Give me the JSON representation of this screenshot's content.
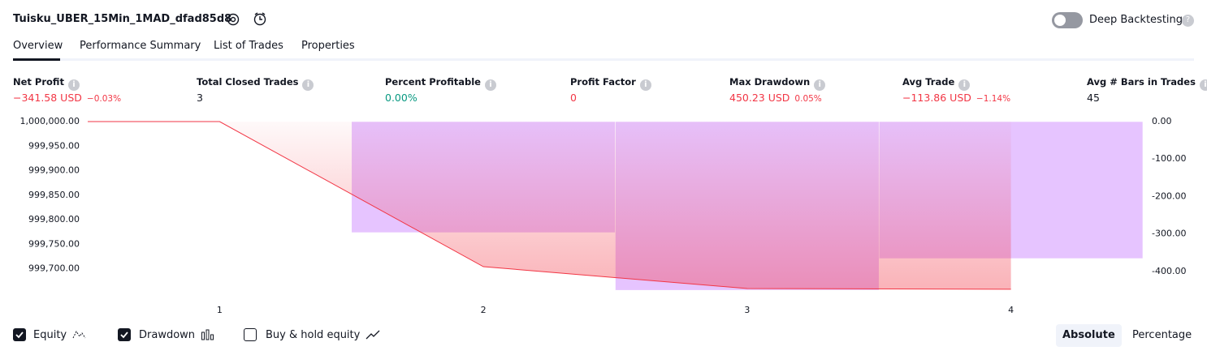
{
  "header": {
    "title": "Tuisku_UBER_15Min_1MAD_dfad85d8",
    "deep_backtesting": "Deep Backtesting"
  },
  "tabs": [
    "Overview",
    "Performance Summary",
    "List of Trades",
    "Properties"
  ],
  "metrics": [
    {
      "label": "Net Profit",
      "value": "−341.58 USD",
      "change": "−0.03%",
      "color": "#f23645"
    },
    {
      "label": "Total Closed Trades",
      "value": "3",
      "color": "#131722"
    },
    {
      "label": "Percent Profitable",
      "value": "0.00%",
      "color": "#089981"
    },
    {
      "label": "Profit Factor",
      "value": "0",
      "color": "#f23645"
    },
    {
      "label": "Max Drawdown",
      "value": "450.23 USD",
      "change": "0.05%",
      "color": "#f23645"
    },
    {
      "label": "Avg Trade",
      "value": "−113.86 USD",
      "change": "−1.14%",
      "color": "#f23645"
    },
    {
      "label": "Avg # Bars in Trades",
      "value": "45",
      "color": "#131722"
    }
  ],
  "chart_data": {
    "type": "line",
    "xlim": [
      0.5,
      4.5
    ],
    "xticks": [
      1,
      2,
      3,
      4
    ],
    "ylim": [
      999655,
      1000000
    ],
    "yticks": [
      {
        "value": 1000000,
        "label": "1,000,000.00"
      },
      {
        "value": 999950,
        "label": "999,950.00"
      },
      {
        "value": 999900,
        "label": "999,900.00"
      },
      {
        "value": 999850,
        "label": "999,850.00"
      },
      {
        "value": 999800,
        "label": "999,800.00"
      },
      {
        "value": 999750,
        "label": "999,750.00"
      },
      {
        "value": 999700,
        "label": "999,700.00"
      }
    ],
    "y2lim": [
      -452,
      0
    ],
    "y2ticks": [
      {
        "value": 0,
        "label": "0.00"
      },
      {
        "value": -100,
        "label": "-100.00"
      },
      {
        "value": -200,
        "label": "-200.00"
      },
      {
        "value": -300,
        "label": "-300.00"
      },
      {
        "value": -400,
        "label": "-400.00"
      }
    ],
    "series": [
      {
        "name": "Equity",
        "kind": "line",
        "color": "#f23645",
        "checked": true,
        "x": [
          0.5,
          1,
          2,
          3,
          4
        ],
        "values": [
          1000000,
          1000000,
          999704.5,
          999660,
          999658.42
        ]
      },
      {
        "name": "Drawdown",
        "kind": "bar",
        "axis": "y2",
        "color": "#c77dff",
        "checked": true,
        "x": [
          2,
          3,
          4
        ],
        "values": [
          -296.3,
          -450.23,
          -365.5
        ]
      },
      {
        "name": "Buy & hold equity",
        "kind": "line",
        "checked": false,
        "x": [],
        "values": []
      }
    ],
    "modes": [
      "Absolute",
      "Percentage"
    ],
    "active_mode": 0
  }
}
